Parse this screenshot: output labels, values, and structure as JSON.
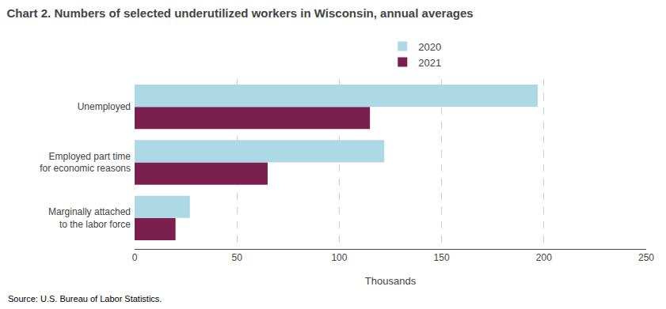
{
  "chart_data": {
    "type": "bar",
    "orientation": "horizontal",
    "title": "Chart 2. Numbers of selected underutilized workers in Wisconsin, annual averages",
    "source": "Source: U.S. Bureau of Labor Statistics.",
    "categories": [
      "Marginally attached\nto the labor force",
      "Employed part time\nfor economic reasons",
      "Unemployed"
    ],
    "series": [
      {
        "name": "2020",
        "color": "#ADD8E6",
        "values": [
          27,
          122,
          197
        ]
      },
      {
        "name": "2021",
        "color": "#7B1F4E",
        "values": [
          20,
          65,
          115
        ]
      }
    ],
    "xlabel": "Thousands",
    "xlim": [
      0,
      250
    ],
    "xticks": [
      0,
      50,
      100,
      150,
      200,
      250
    ],
    "grid": true,
    "legend": "top"
  }
}
